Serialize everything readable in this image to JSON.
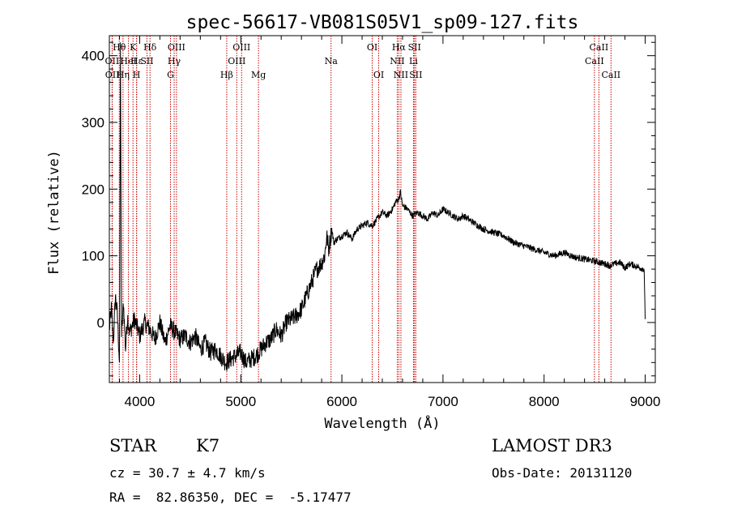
{
  "chart_data": {
    "type": "line",
    "title": "spec-56617-VB081S05V1_sp09-127.fits",
    "xlabel": "Wavelength (Å)",
    "ylabel": "Flux (relative)",
    "xlim": [
      3700,
      9100
    ],
    "ylim": [
      -90,
      430
    ],
    "xticks": [
      4000,
      5000,
      6000,
      7000,
      8000,
      9000
    ],
    "yticks": [
      0,
      100,
      200,
      300,
      400
    ],
    "grid": false,
    "line_color": "#000000",
    "marker_color": "#cc0000",
    "series": [
      {
        "x": [
          3700,
          3720,
          3740,
          3760,
          3780,
          3800,
          3810,
          3820,
          3840,
          3860,
          3880,
          3900,
          3950,
          4000,
          4050,
          4100,
          4150,
          4200,
          4250,
          4300,
          4350,
          4400,
          4450,
          4500,
          4550,
          4600,
          4650,
          4700,
          4750,
          4800,
          4850,
          4900,
          4950,
          5000,
          5050,
          5100,
          5150,
          5200,
          5250,
          5300,
          5350,
          5400,
          5450,
          5500,
          5550,
          5600,
          5650,
          5700,
          5750,
          5780,
          5800,
          5830,
          5850,
          5870,
          5900,
          5920,
          5950,
          6000,
          6050,
          6100,
          6150,
          6200,
          6250,
          6300,
          6350,
          6400,
          6450,
          6500,
          6530,
          6560,
          6580,
          6600,
          6650,
          6700,
          6750,
          6800,
          6850,
          6900,
          6950,
          7000,
          7050,
          7100,
          7150,
          7200,
          7300,
          7400,
          7500,
          7600,
          7700,
          7800,
          7900,
          8000,
          8100,
          8200,
          8300,
          8400,
          8500,
          8550,
          8600,
          8650,
          8700,
          8750,
          8800,
          8850,
          8900,
          8950,
          8990,
          9000
        ],
        "y": [
          -10,
          20,
          -30,
          40,
          10,
          -60,
          420,
          -20,
          30,
          -40,
          10,
          -15,
          5,
          -20,
          0,
          -10,
          -25,
          0,
          -30,
          -5,
          -15,
          -25,
          -20,
          -30,
          -20,
          -40,
          -30,
          -45,
          -40,
          -50,
          -60,
          -55,
          -50,
          -45,
          -60,
          -55,
          -50,
          -40,
          -30,
          -25,
          -10,
          -20,
          0,
          5,
          10,
          20,
          40,
          60,
          80,
          85,
          90,
          100,
          130,
          110,
          140,
          120,
          125,
          130,
          135,
          125,
          140,
          145,
          150,
          145,
          155,
          165,
          160,
          170,
          180,
          185,
          195,
          175,
          170,
          160,
          165,
          160,
          155,
          165,
          160,
          170,
          165,
          160,
          155,
          160,
          150,
          140,
          135,
          130,
          120,
          115,
          110,
          105,
          100,
          105,
          98,
          95,
          92,
          90,
          88,
          85,
          88,
          90,
          82,
          88,
          85,
          82,
          80,
          5
        ]
      }
    ],
    "line_markers": {
      "row1": [
        {
          "label": "Hθ",
          "x": 3798
        },
        {
          "label": "K",
          "x": 3934
        },
        {
          "label": "Hδ",
          "x": 4102
        },
        {
          "label": "OIII",
          "x": 4364
        },
        {
          "label": "OIII",
          "x": 5008
        },
        {
          "label": "OI",
          "x": 6300
        },
        {
          "label": "Hα",
          "x": 6563
        },
        {
          "label": "SII",
          "x": 6718
        },
        {
          "label": "CaII",
          "x": 8542
        }
      ],
      "row2": [
        {
          "label": "OII",
          "x": 3727
        },
        {
          "label": "Hε",
          "x": 3970
        },
        {
          "label": "HeI",
          "x": 3889
        },
        {
          "label": "SII",
          "x": 4072
        },
        {
          "label": "Hγ",
          "x": 4341
        },
        {
          "label": "OIII",
          "x": 4960
        },
        {
          "label": "Na",
          "x": 5893
        },
        {
          "label": "NII",
          "x": 6548
        },
        {
          "label": "Li",
          "x": 6708
        },
        {
          "label": "CaII",
          "x": 8498
        }
      ],
      "row3": [
        {
          "label": "OII",
          "x": 3729
        },
        {
          "label": "Hη",
          "x": 3835
        },
        {
          "label": "H",
          "x": 3969
        },
        {
          "label": "G",
          "x": 4305
        },
        {
          "label": "Hβ",
          "x": 4861
        },
        {
          "label": "Mg",
          "x": 5175
        },
        {
          "label": "OI",
          "x": 6364
        },
        {
          "label": "NII",
          "x": 6584
        },
        {
          "label": "SII",
          "x": 6731
        },
        {
          "label": "CaII",
          "x": 8662
        }
      ]
    }
  },
  "info": {
    "object_class": "STAR",
    "subclass": "K7",
    "survey": "LAMOST DR3",
    "cz": "cz = 30.7 ± 4.7 km/s",
    "obs_date": "Obs-Date: 20131120",
    "coords": "RA =  82.86350, DEC =  -5.17477"
  }
}
